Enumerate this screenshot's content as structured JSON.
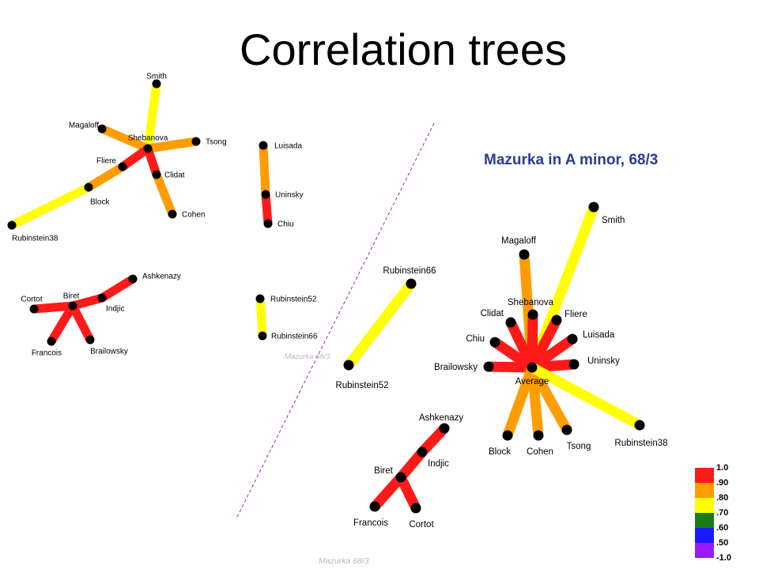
{
  "title": "Correlation trees",
  "subtitle": "Mazurka in A minor, 68/3",
  "watermarks": {
    "small": "Mazurka 68/3",
    "bottom": "Mazurka 68/3"
  },
  "colors": {
    "red": "#ff1a1a",
    "orange": "#ff9d00",
    "yellow": "#ffff00",
    "green": "#1c7a1c",
    "blue": "#1a1aff",
    "violet": "#9b1aff",
    "divider": "#9b2fa8",
    "subtitle": "#2d3a96"
  },
  "legend": {
    "colors": [
      "red",
      "orange",
      "yellow",
      "green",
      "blue",
      "violet"
    ],
    "labels": [
      "1.0",
      ".90",
      ".80",
      ".70",
      ".60",
      ".50",
      "-1.0"
    ]
  },
  "small_trees": {
    "tree_a": {
      "nodes": {
        "smith": "Smith",
        "magaloff": "Magaloff",
        "shebanova": "Shebanova",
        "tsong": "Tsong",
        "fliere": "Fliere",
        "clidat": "Clidat",
        "block": "Block",
        "cohen": "Cohen",
        "rubinstein38": "Rubinstein38"
      },
      "edges": [
        {
          "from": "shebanova",
          "to": "smith",
          "color": "yellow"
        },
        {
          "from": "shebanova",
          "to": "magaloff",
          "color": "orange"
        },
        {
          "from": "shebanova",
          "to": "tsong",
          "color": "orange"
        },
        {
          "from": "shebanova",
          "to": "fliere",
          "color": "red"
        },
        {
          "from": "shebanova",
          "to": "clidat",
          "color": "red"
        },
        {
          "from": "fliere",
          "to": "block",
          "color": "orange"
        },
        {
          "from": "clidat",
          "to": "cohen",
          "color": "orange"
        },
        {
          "from": "block",
          "to": "rubinstein38",
          "color": "yellow"
        }
      ]
    },
    "tree_b": {
      "nodes": {
        "luisada": "Luisada",
        "uninsky": "Uninsky",
        "chiu": "Chiu"
      },
      "edges": [
        {
          "from": "luisada",
          "to": "uninsky",
          "color": "orange"
        },
        {
          "from": "uninsky",
          "to": "chiu",
          "color": "red"
        }
      ]
    },
    "tree_c": {
      "nodes": {
        "cortot": "Cortot",
        "biret": "Biret",
        "indjic": "Indjic",
        "ashkenazy": "Ashkenazy",
        "francois": "Francois",
        "brailowsky": "Brailowsky"
      },
      "edges": [
        {
          "from": "biret",
          "to": "cortot",
          "color": "red"
        },
        {
          "from": "biret",
          "to": "indjic",
          "color": "red"
        },
        {
          "from": "indjic",
          "to": "ashkenazy",
          "color": "red"
        },
        {
          "from": "biret",
          "to": "francois",
          "color": "red"
        },
        {
          "from": "biret",
          "to": "brailowsky",
          "color": "red"
        }
      ]
    },
    "tree_d": {
      "nodes": {
        "rubinstein52": "Rubinstein52",
        "rubinstein66": "Rubinstein66"
      },
      "edges": [
        {
          "from": "rubinstein52",
          "to": "rubinstein66",
          "color": "yellow"
        }
      ]
    }
  },
  "large_trees": {
    "tree_e": {
      "nodes": {
        "rubinstein66": "Rubinstein66",
        "rubinstein52": "Rubinstein52"
      },
      "edges": [
        {
          "from": "rubinstein66",
          "to": "rubinstein52",
          "color": "yellow"
        }
      ]
    },
    "tree_f": {
      "nodes": {
        "average": "Average",
        "smith": "Smith",
        "magaloff": "Magaloff",
        "shebanova": "Shebanova",
        "clidat": "Clidat",
        "fliere": "Fliere",
        "chiu": "Chiu",
        "luisada": "Luisada",
        "brailowsky": "Brailowsky",
        "uninsky": "Uninsky",
        "block": "Block",
        "cohen": "Cohen",
        "tsong": "Tsong",
        "rubinstein38": "Rubinstein38"
      },
      "edges": [
        {
          "from": "average",
          "to": "smith",
          "color": "yellow"
        },
        {
          "from": "average",
          "to": "magaloff",
          "color": "orange"
        },
        {
          "from": "average",
          "to": "shebanova",
          "color": "red"
        },
        {
          "from": "average",
          "to": "clidat",
          "color": "red"
        },
        {
          "from": "average",
          "to": "fliere",
          "color": "red"
        },
        {
          "from": "average",
          "to": "chiu",
          "color": "red"
        },
        {
          "from": "average",
          "to": "luisada",
          "color": "red"
        },
        {
          "from": "average",
          "to": "brailowsky",
          "color": "red"
        },
        {
          "from": "average",
          "to": "uninsky",
          "color": "red"
        },
        {
          "from": "average",
          "to": "block",
          "color": "orange"
        },
        {
          "from": "average",
          "to": "cohen",
          "color": "orange"
        },
        {
          "from": "average",
          "to": "tsong",
          "color": "orange"
        },
        {
          "from": "average",
          "to": "rubinstein38",
          "color": "yellow"
        }
      ]
    },
    "tree_g": {
      "nodes": {
        "ashkenazy": "Ashkenazy",
        "indjic": "Indjic",
        "biret": "Biret",
        "francois": "Francois",
        "cortot": "Cortot"
      },
      "edges": [
        {
          "from": "ashkenazy",
          "to": "indjic",
          "color": "red"
        },
        {
          "from": "indjic",
          "to": "biret",
          "color": "red"
        },
        {
          "from": "biret",
          "to": "francois",
          "color": "red"
        },
        {
          "from": "biret",
          "to": "cortot",
          "color": "red"
        }
      ]
    }
  }
}
